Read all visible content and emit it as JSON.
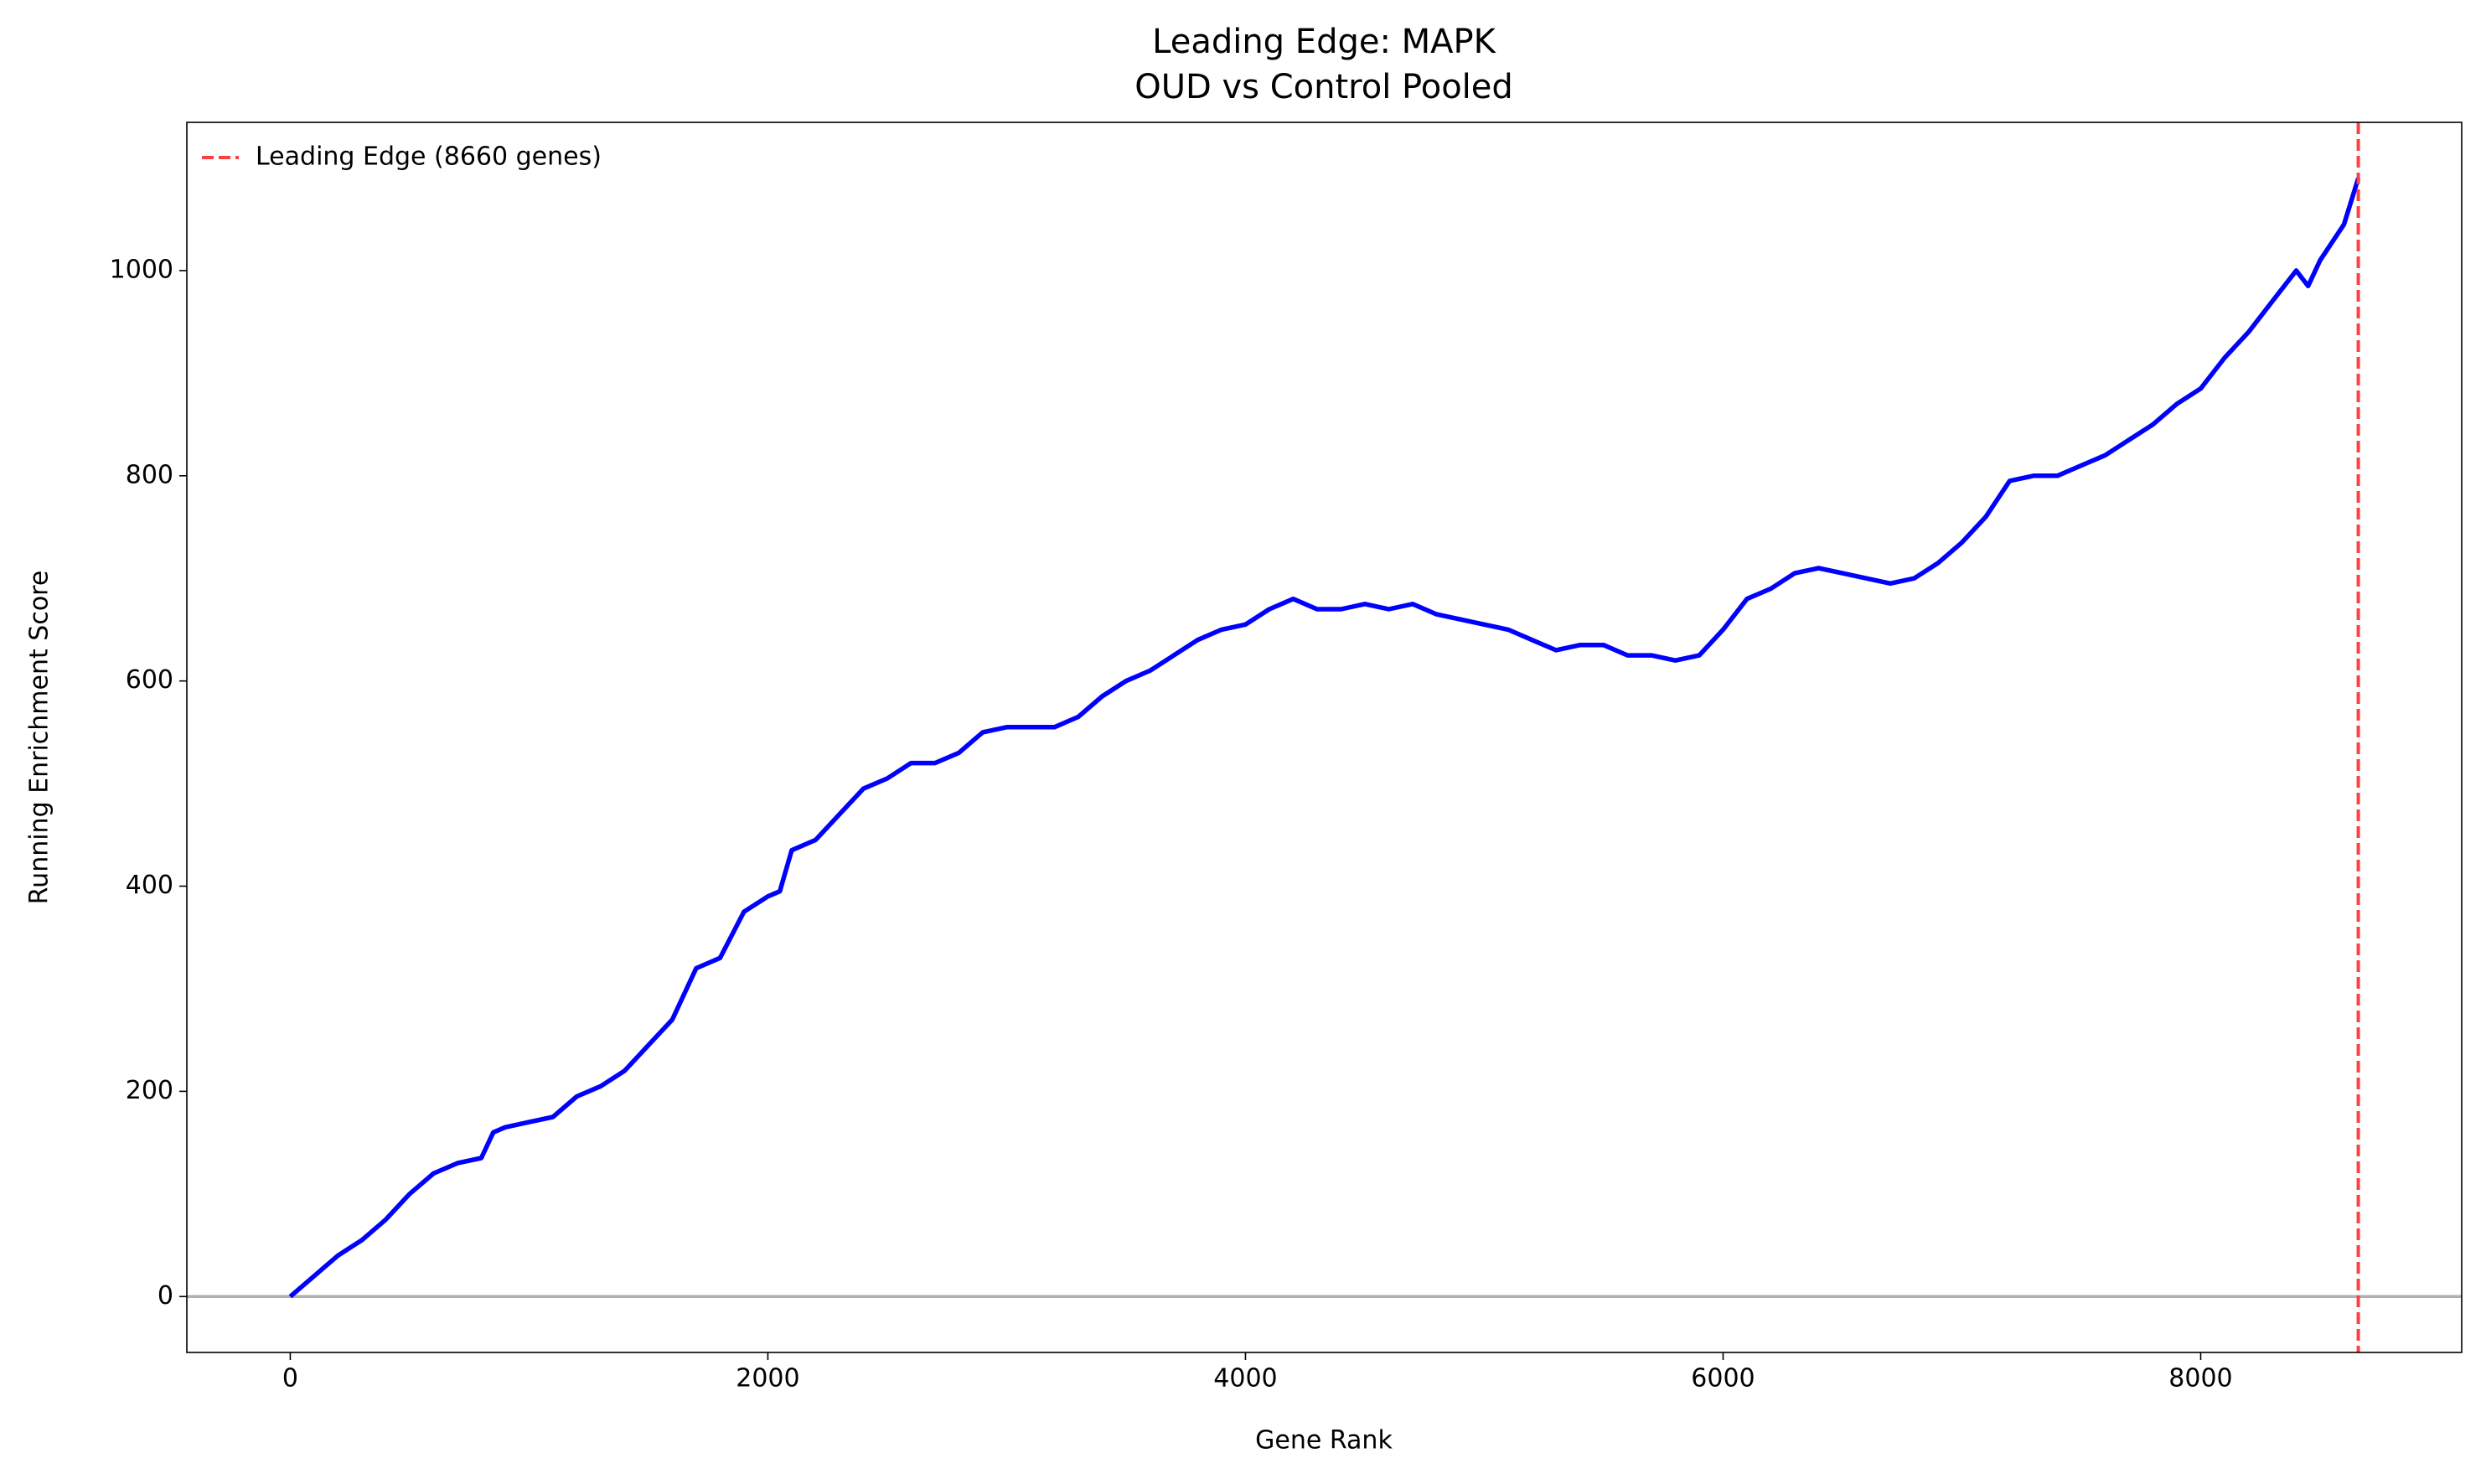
{
  "chart_data": {
    "type": "line",
    "title": "Leading Edge: MAPK",
    "subtitle": "OUD vs Control Pooled",
    "x_label": "Gene Rank",
    "y_label": "Running Enrichment Score",
    "x": [
      0,
      100,
      200,
      300,
      400,
      500,
      600,
      700,
      800,
      850,
      900,
      1000,
      1100,
      1200,
      1300,
      1400,
      1500,
      1600,
      1700,
      1800,
      1900,
      2000,
      2050,
      2100,
      2200,
      2300,
      2400,
      2500,
      2600,
      2700,
      2800,
      2900,
      3000,
      3100,
      3200,
      3300,
      3400,
      3500,
      3600,
      3700,
      3800,
      3900,
      4000,
      4100,
      4200,
      4300,
      4400,
      4500,
      4600,
      4700,
      4800,
      4900,
      5000,
      5100,
      5200,
      5300,
      5400,
      5500,
      5600,
      5700,
      5800,
      5900,
      6000,
      6100,
      6200,
      6300,
      6400,
      6500,
      6600,
      6700,
      6800,
      6900,
      7000,
      7100,
      7200,
      7300,
      7400,
      7500,
      7600,
      7700,
      7800,
      7900,
      8000,
      8100,
      8200,
      8300,
      8400,
      8450,
      8500,
      8600,
      8660
    ],
    "values": [
      0,
      20,
      40,
      55,
      75,
      100,
      120,
      130,
      135,
      160,
      165,
      170,
      175,
      195,
      205,
      220,
      245,
      270,
      320,
      330,
      375,
      390,
      395,
      435,
      445,
      470,
      495,
      505,
      520,
      520,
      530,
      550,
      555,
      555,
      555,
      565,
      585,
      600,
      610,
      625,
      640,
      650,
      655,
      670,
      680,
      670,
      670,
      675,
      670,
      675,
      665,
      660,
      655,
      650,
      640,
      630,
      635,
      635,
      625,
      625,
      620,
      625,
      650,
      680,
      690,
      705,
      710,
      705,
      700,
      695,
      700,
      715,
      735,
      760,
      795,
      800,
      800,
      810,
      820,
      835,
      850,
      870,
      885,
      915,
      940,
      970,
      1000,
      985,
      1010,
      1045,
      1090
    ],
    "color": "#0000ff",
    "hline": {
      "value": 0,
      "color": "#b0b0b0"
    },
    "vline": {
      "value": 8660,
      "color": "#ff4040",
      "name": "Leading Edge (8660 genes)"
    },
    "legend": "upper left",
    "xlim": [
      -433,
      9093
    ],
    "ylim": [
      -54.5,
      1144.5
    ],
    "xticks": [
      0,
      2000,
      4000,
      6000,
      8000
    ],
    "yticks": [
      0,
      200,
      400,
      600,
      800,
      1000
    ],
    "grid": false
  }
}
